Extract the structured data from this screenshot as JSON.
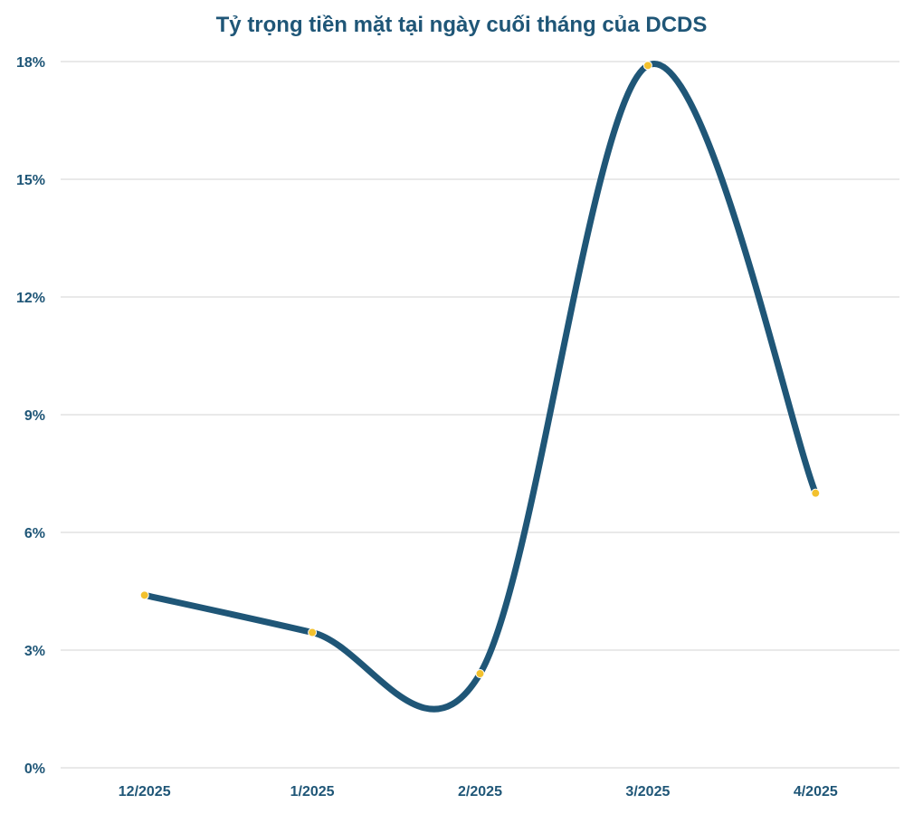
{
  "chart_data": {
    "type": "line",
    "title": "Tỷ trọng tiền mặt tại ngày cuối tháng của DCDS",
    "categories": [
      "12/2025",
      "1/2025",
      "2/2025",
      "3/2025",
      "4/2025"
    ],
    "series": [
      {
        "values": [
          4.4,
          3.45,
          2.4,
          17.9,
          7.0
        ]
      }
    ],
    "y_ticks": [
      "0%",
      "3%",
      "6%",
      "9%",
      "12%",
      "15%",
      "18%"
    ],
    "ylim": [
      0,
      18
    ],
    "grid": true,
    "smooth": true,
    "colors": {
      "line": "#1f5677",
      "marker": "#f2c12e",
      "grid": "#d3d3d3",
      "text": "#1f5677"
    }
  }
}
